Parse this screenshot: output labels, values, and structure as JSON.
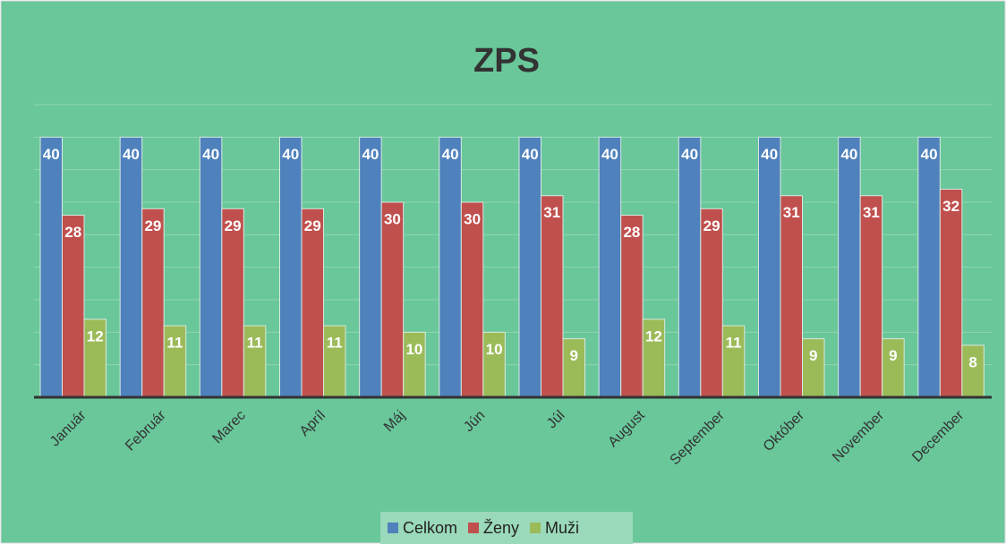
{
  "chart_data": {
    "type": "bar",
    "title": "ZPS",
    "categories": [
      "Január",
      "Február",
      "Marec",
      "Apríl",
      "Máj",
      "Jún",
      "Júl",
      "August",
      "September",
      "Október",
      "November",
      "December"
    ],
    "series": [
      {
        "name": "Celkom",
        "color": "#4f81bd",
        "values": [
          40,
          40,
          40,
          40,
          40,
          40,
          40,
          40,
          40,
          40,
          40,
          40
        ]
      },
      {
        "name": "Ženy",
        "color": "#c0504d",
        "values": [
          28,
          29,
          29,
          29,
          30,
          30,
          31,
          28,
          29,
          31,
          31,
          32
        ]
      },
      {
        "name": "Muži",
        "color": "#9bbb59",
        "values": [
          12,
          11,
          11,
          11,
          10,
          10,
          9,
          12,
          11,
          9,
          9,
          8
        ]
      }
    ],
    "ylim": [
      0,
      45
    ],
    "yticks": [
      0,
      5,
      10,
      15,
      20,
      25,
      30,
      35,
      40,
      45
    ],
    "grid": true,
    "legend": "bottom"
  }
}
